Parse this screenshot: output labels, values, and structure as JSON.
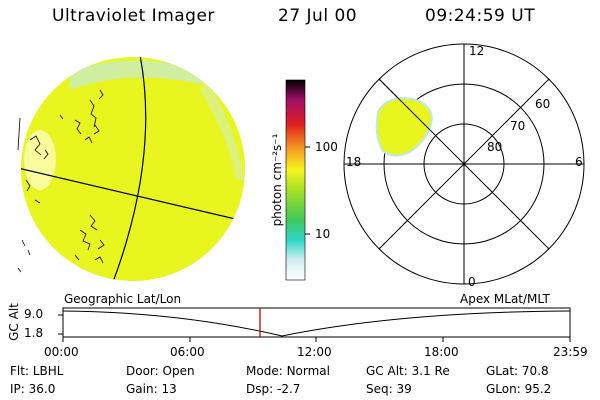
{
  "header": {
    "instrument": "Ultraviolet Imager",
    "date": "27 Jul 00",
    "time": "09:24:59 UT"
  },
  "colorbar": {
    "unit_label": "photon cm⁻²s⁻¹",
    "ticks": [
      "100",
      "10"
    ]
  },
  "polar_plot": {
    "mlt_labels": {
      "top": "12",
      "left": "18",
      "right": "6",
      "bottom": "0"
    },
    "lat_labels": [
      "60",
      "70",
      "80"
    ]
  },
  "timeline": {
    "left_label": "Geographic Lat/Lon",
    "right_label": "Apex MLat/MLT",
    "axis_label": "GC Alt",
    "y_ticks": [
      "9.0",
      "1.8"
    ],
    "x_ticks": [
      "00:00",
      "06:00",
      "12:00",
      "18:00",
      "23:59"
    ],
    "current_time_hours": 9.42
  },
  "info": {
    "row1": [
      {
        "label": "Flt:",
        "value": "LBHL"
      },
      {
        "label": "Door:",
        "value": "Open"
      },
      {
        "label": "Mode:",
        "value": "Normal"
      },
      {
        "label": "GC Alt:",
        "value": "3.1 Re"
      },
      {
        "label": "GLat:",
        "value": "70.8"
      }
    ],
    "row2": [
      {
        "label": "IP:",
        "value": "36.0"
      },
      {
        "label": "Gain:",
        "value": "13"
      },
      {
        "label": "Dsp:",
        "value": "-2.7"
      },
      {
        "label": "Seq:",
        "value": "39"
      },
      {
        "label": "GLon:",
        "value": "95.2"
      }
    ]
  },
  "colors": {
    "image_fill": "#e8f51f",
    "colorbar_stops": [
      "#ffffff",
      "#2fd6c8",
      "#3fc85a",
      "#a8e025",
      "#f5f51f",
      "#f5a020",
      "#e02020",
      "#a0106a",
      "#000000"
    ],
    "time_marker": "#d01010"
  }
}
